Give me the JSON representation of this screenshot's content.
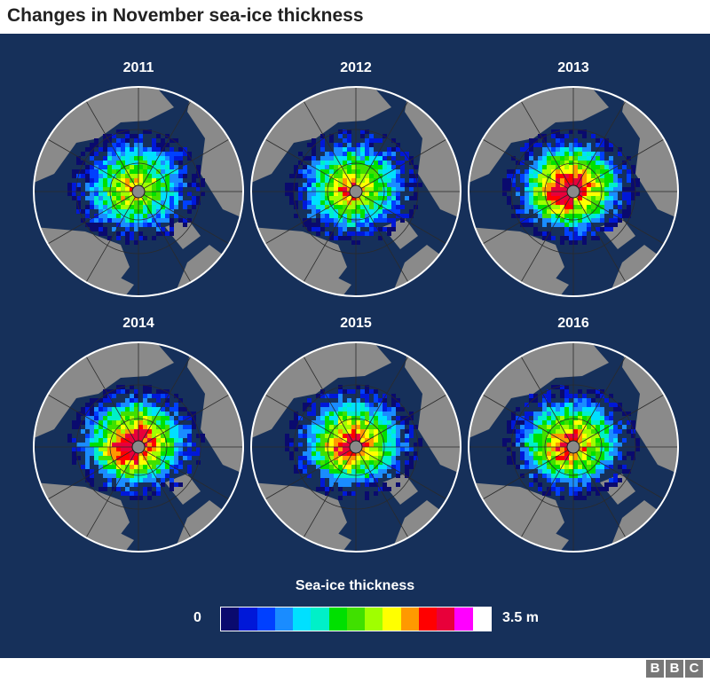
{
  "title": "Changes in November sea-ice thickness",
  "maps": [
    {
      "year": "2011",
      "thickness_level": 0.3
    },
    {
      "year": "2012",
      "thickness_level": 0.35
    },
    {
      "year": "2013",
      "thickness_level": 0.6
    },
    {
      "year": "2014",
      "thickness_level": 0.62
    },
    {
      "year": "2015",
      "thickness_level": 0.52
    },
    {
      "year": "2016",
      "thickness_level": 0.48
    }
  ],
  "legend": {
    "title": "Sea-ice thickness",
    "min_label": "0",
    "max_label": "3.5 m",
    "colors": [
      "#0a0a6e",
      "#0018d8",
      "#0040ff",
      "#1a8cff",
      "#00e0ff",
      "#00f0c8",
      "#00e000",
      "#40e000",
      "#a0ff00",
      "#ffff00",
      "#ff9900",
      "#ff0000",
      "#e8003a",
      "#ff00ff",
      "#ffffff"
    ]
  },
  "colors": {
    "panel": "#16305a",
    "land": "#8a8a8a",
    "ocean": "#16305a"
  },
  "logo": [
    "B",
    "B",
    "C"
  ]
}
